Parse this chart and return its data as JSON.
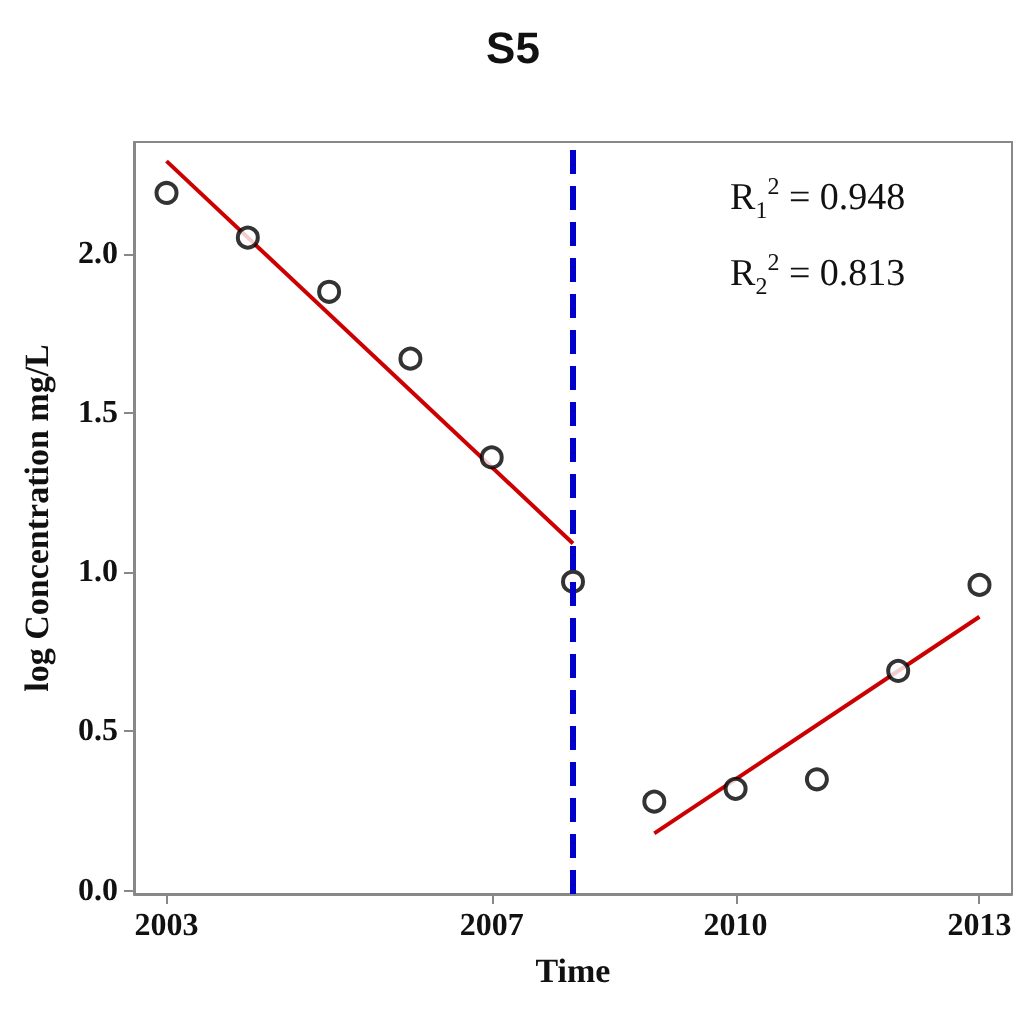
{
  "chart_data": {
    "type": "scatter",
    "title": "S5",
    "xlabel": "Time",
    "ylabel": "log Concentration mg/L",
    "xlim": [
      2002.6,
      2013.4
    ],
    "xticks": [
      2003,
      2007,
      2010,
      2013
    ],
    "ylim": [
      -0.01,
      2.35
    ],
    "yticks": [
      {
        "value": 0,
        "label": "0.0"
      },
      {
        "value": 0.5,
        "label": "0.5"
      },
      {
        "value": 1,
        "label": "1.0"
      },
      {
        "value": 1.5,
        "label": "1.5"
      },
      {
        "value": 2,
        "label": "2.0"
      }
    ],
    "grid": false,
    "marker": "circle",
    "series": [
      {
        "color": "#000000",
        "x": [
          2003,
          2004,
          2005,
          2006,
          2007,
          2008,
          2009,
          2010,
          2011,
          2012,
          2013
        ],
        "values": [
          2.19,
          2.05,
          1.88,
          1.67,
          1.36,
          0.97,
          0.28,
          0.32,
          0.35,
          0.69,
          0.96
        ]
      },
      {
        "type": "line",
        "color": "#cc0000",
        "marker": "none",
        "x": [
          2003,
          2008
        ],
        "values": [
          2.29,
          1.09
        ]
      },
      {
        "type": "line",
        "color": "#cc0000",
        "marker": "none",
        "x": [
          2009,
          2013
        ],
        "values": [
          0.18,
          0.86
        ]
      }
    ],
    "ref_lines": [
      {
        "axis": "x",
        "value": 2008,
        "color": "#0000cc",
        "line_style": "dashed"
      }
    ],
    "annotations": [
      "R$_{1}$$^{2}$ = 0.948",
      "R$_{2}$$^{2}$ = 0.813"
    ]
  }
}
